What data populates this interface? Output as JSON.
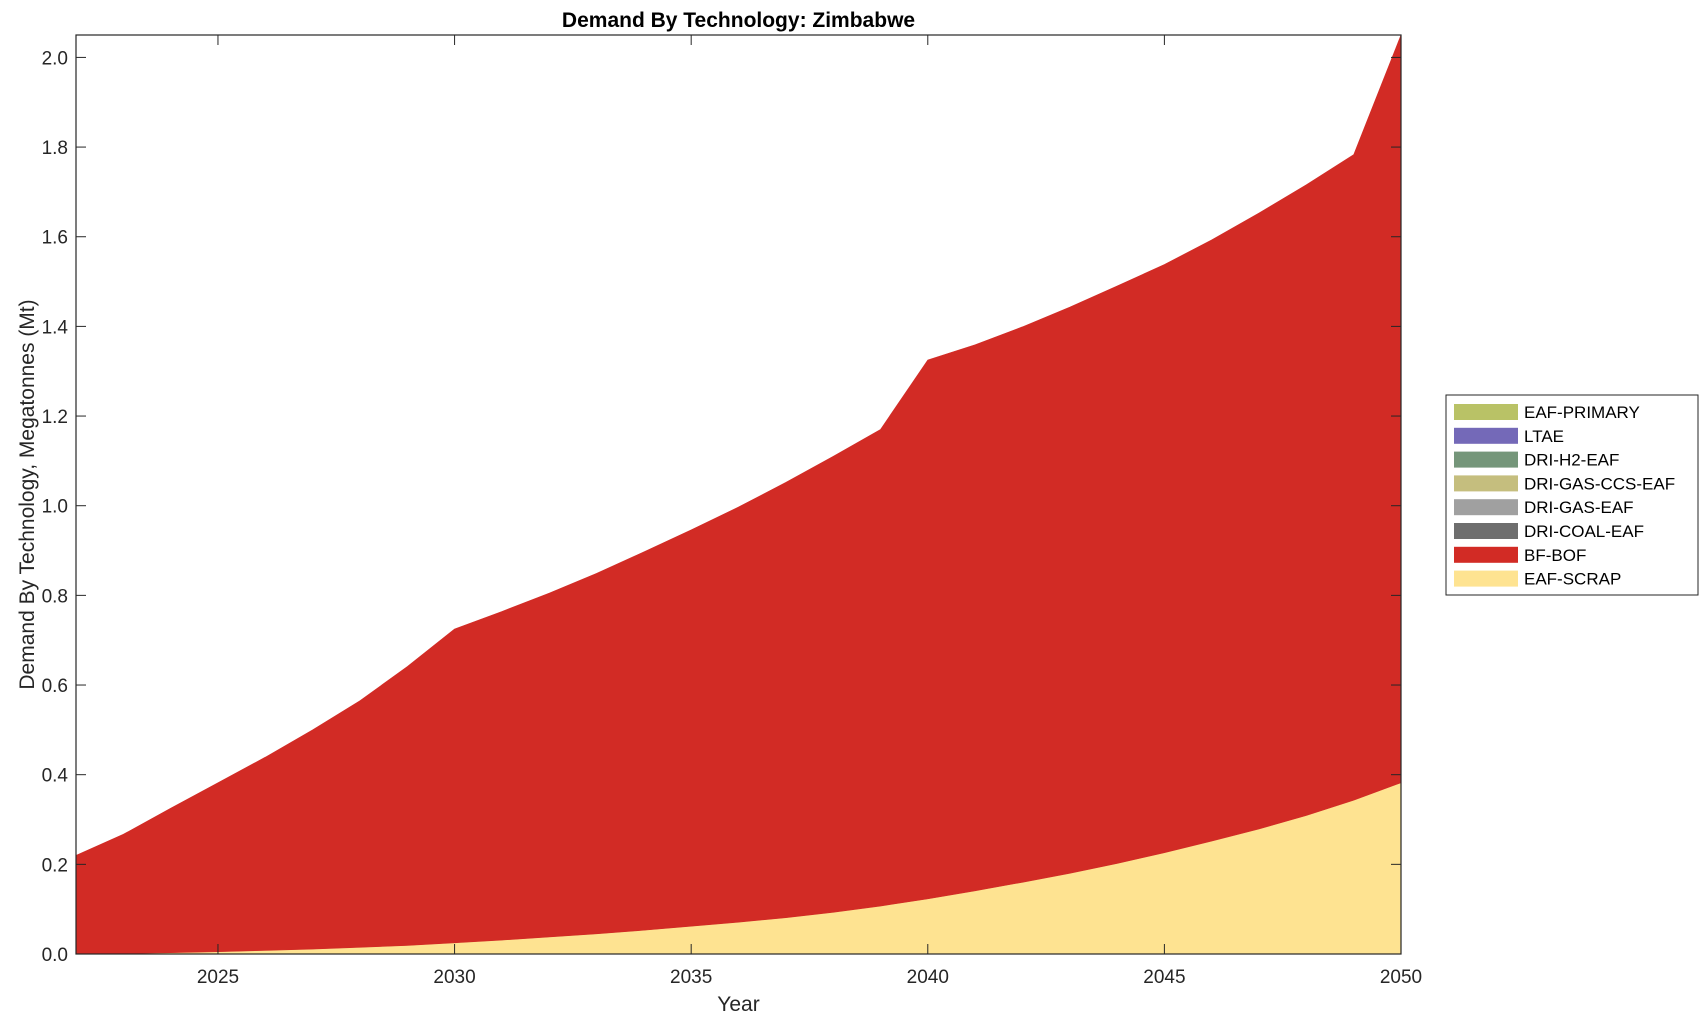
{
  "chart_data": {
    "type": "area",
    "stacked": true,
    "title": "Demand By Technology: Zimbabwe",
    "xlabel": "Year",
    "ylabel": "Demand By Technology, Megatonnes (Mt)",
    "xlim": [
      2022,
      2050
    ],
    "ylim": [
      0,
      2.05
    ],
    "xticks": [
      2025,
      2030,
      2035,
      2040,
      2045,
      2050
    ],
    "yticks": [
      0.0,
      0.2,
      0.4,
      0.6,
      0.8,
      1.0,
      1.2,
      1.4,
      1.6,
      1.8,
      2.0
    ],
    "ytick_labels": [
      "0.0",
      "0.2",
      "0.4",
      "0.6",
      "0.8",
      "1.0",
      "1.2",
      "1.4",
      "1.6",
      "1.8",
      "2.0"
    ],
    "xtick_labels": [
      "2025",
      "2030",
      "2035",
      "2040",
      "2045",
      "2050"
    ],
    "grid": false,
    "legend_position": "right",
    "x": [
      2022,
      2023,
      2024,
      2025,
      2026,
      2027,
      2028,
      2029,
      2030,
      2031,
      2032,
      2033,
      2034,
      2035,
      2036,
      2037,
      2038,
      2039,
      2040,
      2041,
      2042,
      2043,
      2044,
      2045,
      2046,
      2047,
      2048,
      2049,
      2050
    ],
    "series": [
      {
        "name": "EAF-SCRAP",
        "color": "#fee391",
        "values": [
          0.0,
          0.001,
          0.003,
          0.005,
          0.008,
          0.011,
          0.015,
          0.019,
          0.025,
          0.031,
          0.038,
          0.045,
          0.053,
          0.062,
          0.071,
          0.081,
          0.093,
          0.107,
          0.123,
          0.141,
          0.16,
          0.18,
          0.202,
          0.226,
          0.252,
          0.279,
          0.309,
          0.343,
          0.382
        ]
      },
      {
        "name": "BF-BOF",
        "color": "#d22b25",
        "values": [
          0.22,
          0.266,
          0.322,
          0.377,
          0.431,
          0.489,
          0.55,
          0.622,
          0.7,
          0.733,
          0.767,
          0.804,
          0.844,
          0.884,
          0.926,
          0.971,
          1.017,
          1.063,
          1.202,
          1.218,
          1.239,
          1.263,
          1.288,
          1.312,
          1.341,
          1.374,
          1.407,
          1.44,
          1.668
        ]
      },
      {
        "name": "DRI-COAL-EAF",
        "color": "#6e6e6e",
        "values": [
          0,
          0,
          0,
          0,
          0,
          0,
          0,
          0,
          0,
          0,
          0,
          0,
          0,
          0,
          0,
          0,
          0,
          0,
          0,
          0,
          0,
          0,
          0,
          0,
          0,
          0,
          0,
          0,
          0
        ]
      },
      {
        "name": "DRI-GAS-EAF",
        "color": "#a0a0a0",
        "values": [
          0,
          0,
          0,
          0,
          0,
          0,
          0,
          0,
          0,
          0,
          0,
          0,
          0,
          0,
          0,
          0,
          0,
          0,
          0,
          0,
          0,
          0,
          0,
          0,
          0,
          0,
          0,
          0,
          0
        ]
      },
      {
        "name": "DRI-GAS-CCS-EAF",
        "color": "#c5be7e",
        "values": [
          0,
          0,
          0,
          0,
          0,
          0,
          0,
          0,
          0,
          0,
          0,
          0,
          0,
          0,
          0,
          0,
          0,
          0,
          0,
          0,
          0,
          0,
          0,
          0,
          0,
          0,
          0,
          0,
          0
        ]
      },
      {
        "name": "DRI-H2-EAF",
        "color": "#75967a",
        "values": [
          0,
          0,
          0,
          0,
          0,
          0,
          0,
          0,
          0,
          0,
          0,
          0,
          0,
          0,
          0,
          0,
          0,
          0,
          0,
          0,
          0,
          0,
          0,
          0,
          0,
          0,
          0,
          0,
          0
        ]
      },
      {
        "name": "LTAE",
        "color": "#7469b8",
        "values": [
          0,
          0,
          0,
          0,
          0,
          0,
          0,
          0,
          0,
          0,
          0,
          0,
          0,
          0,
          0,
          0,
          0,
          0,
          0,
          0,
          0,
          0,
          0,
          0,
          0,
          0,
          0,
          0,
          0
        ]
      },
      {
        "name": "EAF-PRIMARY",
        "color": "#b9c266",
        "values": [
          0,
          0,
          0,
          0,
          0,
          0,
          0,
          0,
          0,
          0,
          0,
          0,
          0,
          0,
          0,
          0,
          0,
          0,
          0,
          0,
          0,
          0,
          0,
          0,
          0,
          0,
          0,
          0,
          0
        ]
      }
    ]
  }
}
